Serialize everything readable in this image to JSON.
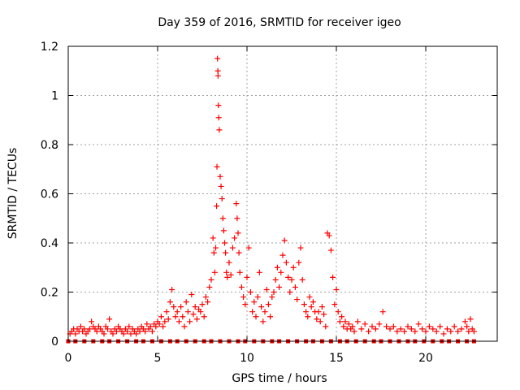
{
  "chart_data": {
    "type": "scatter",
    "title": "Day 359 of 2016, SRMTID for receiver igeo",
    "xlabel": "GPS time / hours",
    "ylabel": "SRMTID / TECUs",
    "xlim": [
      0,
      24
    ],
    "ylim": [
      0,
      1.2
    ],
    "xticks": [
      0,
      5,
      10,
      15,
      20
    ],
    "yticks": [
      0,
      0.2,
      0.4,
      0.6,
      0.8,
      1,
      1.2
    ],
    "xtick_labels": [
      "0",
      "5",
      "10",
      "15",
      "20"
    ],
    "ytick_labels": [
      "0",
      "0.2",
      "0.4",
      "0.6",
      "0.8",
      "1",
      "1.2"
    ],
    "grid": true,
    "marker": "plus",
    "color": "#ff0000",
    "series": [
      {
        "name": "SRMTID",
        "points": [
          [
            0.1,
            0.03
          ],
          [
            0.2,
            0.04
          ],
          [
            0.3,
            0.05
          ],
          [
            0.4,
            0.03
          ],
          [
            0.5,
            0.05
          ],
          [
            0.6,
            0.04
          ],
          [
            0.7,
            0.06
          ],
          [
            0.8,
            0.04
          ],
          [
            0.9,
            0.05
          ],
          [
            1.0,
            0.03
          ],
          [
            1.1,
            0.04
          ],
          [
            1.2,
            0.05
          ],
          [
            1.3,
            0.08
          ],
          [
            1.4,
            0.06
          ],
          [
            1.5,
            0.05
          ],
          [
            1.6,
            0.04
          ],
          [
            1.7,
            0.06
          ],
          [
            1.8,
            0.05
          ],
          [
            1.9,
            0.04
          ],
          [
            2.0,
            0.03
          ],
          [
            2.1,
            0.06
          ],
          [
            2.2,
            0.05
          ],
          [
            2.3,
            0.09
          ],
          [
            2.4,
            0.04
          ],
          [
            2.5,
            0.03
          ],
          [
            2.6,
            0.05
          ],
          [
            2.7,
            0.04
          ],
          [
            2.8,
            0.06
          ],
          [
            2.9,
            0.05
          ],
          [
            3.0,
            0.04
          ],
          [
            3.1,
            0.03
          ],
          [
            3.2,
            0.05
          ],
          [
            3.3,
            0.04
          ],
          [
            3.4,
            0.06
          ],
          [
            3.5,
            0.03
          ],
          [
            3.6,
            0.05
          ],
          [
            3.7,
            0.04
          ],
          [
            3.8,
            0.03
          ],
          [
            3.9,
            0.05
          ],
          [
            4.0,
            0.04
          ],
          [
            4.1,
            0.06
          ],
          [
            4.2,
            0.05
          ],
          [
            4.3,
            0.04
          ],
          [
            4.4,
            0.07
          ],
          [
            4.5,
            0.05
          ],
          [
            4.6,
            0.06
          ],
          [
            4.7,
            0.04
          ],
          [
            4.8,
            0.07
          ],
          [
            4.9,
            0.06
          ],
          [
            5.0,
            0.08
          ],
          [
            5.1,
            0.07
          ],
          [
            5.2,
            0.1
          ],
          [
            5.3,
            0.06
          ],
          [
            5.4,
            0.08
          ],
          [
            5.5,
            0.12
          ],
          [
            5.6,
            0.09
          ],
          [
            5.7,
            0.16
          ],
          [
            5.8,
            0.21
          ],
          [
            5.9,
            0.14
          ],
          [
            6.0,
            0.1
          ],
          [
            6.1,
            0.12
          ],
          [
            6.2,
            0.08
          ],
          [
            6.3,
            0.14
          ],
          [
            6.4,
            0.1
          ],
          [
            6.5,
            0.06
          ],
          [
            6.6,
            0.16
          ],
          [
            6.7,
            0.12
          ],
          [
            6.8,
            0.08
          ],
          [
            6.9,
            0.19
          ],
          [
            7.0,
            0.11
          ],
          [
            7.1,
            0.14
          ],
          [
            7.2,
            0.09
          ],
          [
            7.3,
            0.13
          ],
          [
            7.4,
            0.12
          ],
          [
            7.5,
            0.15
          ],
          [
            7.6,
            0.1
          ],
          [
            7.7,
            0.18
          ],
          [
            7.8,
            0.16
          ],
          [
            7.9,
            0.22
          ],
          [
            8.0,
            0.25
          ],
          [
            8.1,
            0.42
          ],
          [
            8.15,
            0.36
          ],
          [
            8.2,
            0.28
          ],
          [
            8.25,
            0.38
          ],
          [
            8.3,
            0.55
          ],
          [
            8.32,
            0.71
          ],
          [
            8.35,
            1.15
          ],
          [
            8.37,
            1.1
          ],
          [
            8.38,
            1.08
          ],
          [
            8.4,
            0.96
          ],
          [
            8.42,
            0.91
          ],
          [
            8.45,
            0.86
          ],
          [
            8.5,
            0.67
          ],
          [
            8.55,
            0.63
          ],
          [
            8.6,
            0.58
          ],
          [
            8.65,
            0.5
          ],
          [
            8.7,
            0.45
          ],
          [
            8.75,
            0.4
          ],
          [
            8.8,
            0.36
          ],
          [
            8.85,
            0.28
          ],
          [
            8.9,
            0.26
          ],
          [
            9.0,
            0.32
          ],
          [
            9.1,
            0.27
          ],
          [
            9.2,
            0.38
          ],
          [
            9.3,
            0.42
          ],
          [
            9.4,
            0.56
          ],
          [
            9.45,
            0.5
          ],
          [
            9.5,
            0.44
          ],
          [
            9.55,
            0.36
          ],
          [
            9.6,
            0.28
          ],
          [
            9.7,
            0.22
          ],
          [
            9.8,
            0.18
          ],
          [
            9.9,
            0.15
          ],
          [
            10.0,
            0.26
          ],
          [
            10.1,
            0.38
          ],
          [
            10.2,
            0.2
          ],
          [
            10.3,
            0.12
          ],
          [
            10.4,
            0.16
          ],
          [
            10.5,
            0.1
          ],
          [
            10.6,
            0.18
          ],
          [
            10.7,
            0.28
          ],
          [
            10.8,
            0.14
          ],
          [
            10.9,
            0.08
          ],
          [
            11.0,
            0.12
          ],
          [
            11.1,
            0.21
          ],
          [
            11.2,
            0.15
          ],
          [
            11.3,
            0.1
          ],
          [
            11.4,
            0.18
          ],
          [
            11.5,
            0.2
          ],
          [
            11.6,
            0.25
          ],
          [
            11.7,
            0.3
          ],
          [
            11.8,
            0.22
          ],
          [
            11.9,
            0.28
          ],
          [
            12.0,
            0.35
          ],
          [
            12.1,
            0.41
          ],
          [
            12.2,
            0.32
          ],
          [
            12.3,
            0.26
          ],
          [
            12.4,
            0.2
          ],
          [
            12.5,
            0.25
          ],
          [
            12.6,
            0.3
          ],
          [
            12.7,
            0.22
          ],
          [
            12.8,
            0.17
          ],
          [
            12.9,
            0.32
          ],
          [
            13.0,
            0.38
          ],
          [
            13.1,
            0.25
          ],
          [
            13.2,
            0.15
          ],
          [
            13.3,
            0.12
          ],
          [
            13.4,
            0.1
          ],
          [
            13.5,
            0.18
          ],
          [
            13.6,
            0.14
          ],
          [
            13.7,
            0.16
          ],
          [
            13.8,
            0.12
          ],
          [
            13.9,
            0.09
          ],
          [
            14.0,
            0.12
          ],
          [
            14.1,
            0.08
          ],
          [
            14.2,
            0.14
          ],
          [
            14.3,
            0.11
          ],
          [
            14.4,
            0.06
          ],
          [
            14.5,
            0.44
          ],
          [
            14.6,
            0.43
          ],
          [
            14.7,
            0.37
          ],
          [
            14.8,
            0.26
          ],
          [
            14.9,
            0.15
          ],
          [
            15.0,
            0.21
          ],
          [
            15.1,
            0.12
          ],
          [
            15.2,
            0.08
          ],
          [
            15.3,
            0.1
          ],
          [
            15.4,
            0.06
          ],
          [
            15.5,
            0.08
          ],
          [
            15.6,
            0.05
          ],
          [
            15.7,
            0.07
          ],
          [
            15.8,
            0.05
          ],
          [
            15.9,
            0.06
          ],
          [
            16.0,
            0.04
          ],
          [
            16.2,
            0.08
          ],
          [
            16.4,
            0.05
          ],
          [
            16.6,
            0.07
          ],
          [
            16.8,
            0.04
          ],
          [
            17.0,
            0.06
          ],
          [
            17.2,
            0.05
          ],
          [
            17.4,
            0.07
          ],
          [
            17.6,
            0.12
          ],
          [
            17.8,
            0.06
          ],
          [
            18.0,
            0.05
          ],
          [
            18.2,
            0.06
          ],
          [
            18.4,
            0.04
          ],
          [
            18.6,
            0.05
          ],
          [
            18.8,
            0.04
          ],
          [
            19.0,
            0.06
          ],
          [
            19.2,
            0.05
          ],
          [
            19.4,
            0.04
          ],
          [
            19.6,
            0.07
          ],
          [
            19.8,
            0.05
          ],
          [
            20.0,
            0.04
          ],
          [
            20.2,
            0.06
          ],
          [
            20.4,
            0.05
          ],
          [
            20.6,
            0.04
          ],
          [
            20.8,
            0.06
          ],
          [
            21.0,
            0.03
          ],
          [
            21.2,
            0.05
          ],
          [
            21.4,
            0.04
          ],
          [
            21.6,
            0.06
          ],
          [
            21.8,
            0.04
          ],
          [
            22.0,
            0.05
          ],
          [
            22.2,
            0.08
          ],
          [
            22.3,
            0.06
          ],
          [
            22.4,
            0.04
          ],
          [
            22.5,
            0.09
          ],
          [
            22.6,
            0.05
          ],
          [
            22.7,
            0.04
          ]
        ]
      },
      {
        "name": "baseline",
        "marker": "square",
        "x": [
          0,
          0.4,
          0.9,
          1.4,
          1.9,
          2.3,
          2.8,
          3.3,
          3.8,
          4.2,
          4.7,
          5.2,
          5.7,
          6.1,
          6.6,
          7.1,
          7.6,
          8.0,
          8.5,
          9.0,
          9.5,
          9.9,
          10.4,
          10.9,
          11.4,
          11.8,
          12.3,
          12.8,
          13.3,
          13.7,
          14.2,
          14.7,
          15.2,
          15.6,
          16.1,
          16.6,
          17.1,
          17.5,
          18.0,
          18.5,
          19.0,
          19.4,
          19.9,
          20.4,
          20.9,
          21.3,
          21.8,
          22.3,
          22.7
        ],
        "y": 0
      }
    ]
  }
}
